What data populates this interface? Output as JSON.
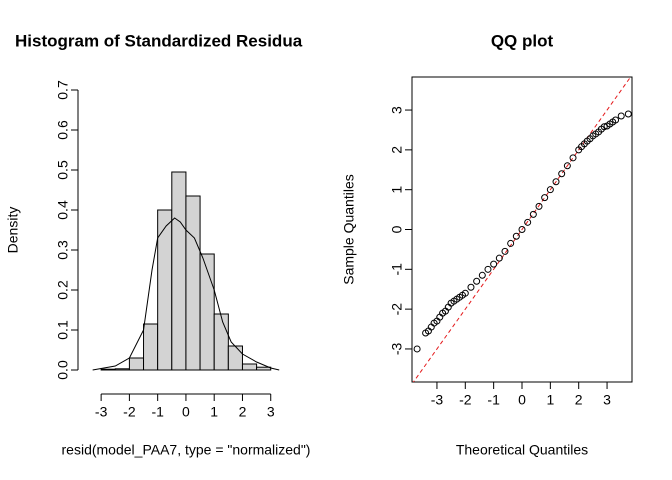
{
  "chart_data": [
    {
      "type": "histogram",
      "title": "Histogram of Standardized Residua",
      "xlabel": "resid(model_PAA7, type = \"normalized\")",
      "ylabel": "Density",
      "bins": [
        -3,
        -2.5,
        -2,
        -1.5,
        -1,
        -0.5,
        0,
        0.5,
        1,
        1.5,
        2,
        2.5,
        3
      ],
      "counts": [
        0.002,
        0.003,
        0.03,
        0.115,
        0.4,
        0.495,
        0.435,
        0.29,
        0.14,
        0.06,
        0.015,
        0.007
      ],
      "color": "#d3d3d3",
      "density": {
        "x": [
          -3.3,
          -2.5,
          -2,
          -1.5,
          -1.2,
          -1,
          -0.7,
          -0.4,
          -0.2,
          0,
          0.3,
          0.6,
          1,
          1.3,
          1.6,
          2,
          2.5,
          3,
          3.3
        ],
        "y": [
          0,
          0.01,
          0.03,
          0.1,
          0.25,
          0.33,
          0.36,
          0.38,
          0.37,
          0.35,
          0.33,
          0.28,
          0.2,
          0.12,
          0.07,
          0.04,
          0.02,
          0.005,
          0
        ]
      },
      "xlim": [
        -3.5,
        4
      ],
      "ylim": [
        0,
        0.7
      ],
      "xticks": [
        -3,
        -2,
        -1,
        0,
        1,
        2,
        3
      ],
      "yticks": [
        {
          "value": 0,
          "label": "0.0"
        },
        0.1,
        0.2,
        0.3,
        0.4,
        0.5,
        0.6,
        0.7
      ],
      "grid": false
    },
    {
      "type": "scatter",
      "title": "QQ plot",
      "xlabel": "Theoretical Quantiles",
      "ylabel": "Sample Quantiles",
      "x": [
        -3.7,
        -3.4,
        -3.3,
        -3.2,
        -3.1,
        -3.0,
        -2.9,
        -2.8,
        -2.7,
        -2.6,
        -2.5,
        -2.4,
        -2.3,
        -2.2,
        -2.1,
        -2.0,
        -1.8,
        -1.6,
        -1.4,
        -1.2,
        -1.0,
        -0.8,
        -0.6,
        -0.4,
        -0.2,
        0,
        0.2,
        0.4,
        0.6,
        0.8,
        1.0,
        1.2,
        1.4,
        1.6,
        1.8,
        2.0,
        2.1,
        2.2,
        2.3,
        2.4,
        2.5,
        2.6,
        2.7,
        2.8,
        2.9,
        3.0,
        3.1,
        3.2,
        3.3,
        3.5,
        3.75
      ],
      "y": [
        -3.0,
        -2.6,
        -2.55,
        -2.45,
        -2.35,
        -2.3,
        -2.2,
        -2.1,
        -2.05,
        -1.95,
        -1.85,
        -1.8,
        -1.75,
        -1.7,
        -1.65,
        -1.6,
        -1.45,
        -1.3,
        -1.15,
        -1.0,
        -0.87,
        -0.72,
        -0.55,
        -0.35,
        -0.17,
        0,
        0.18,
        0.38,
        0.58,
        0.8,
        1.0,
        1.2,
        1.4,
        1.6,
        1.8,
        2.0,
        2.08,
        2.15,
        2.22,
        2.28,
        2.35,
        2.4,
        2.45,
        2.52,
        2.58,
        2.6,
        2.65,
        2.7,
        2.75,
        2.85,
        2.9
      ],
      "color": "#000000",
      "reference_line": {
        "intercept": 0,
        "slope": 1,
        "color": "#e41a1c"
      },
      "xlim": [
        -3.88,
        3.88
      ],
      "ylim": [
        -3.83,
        3.83
      ],
      "xticks": [
        -3,
        -2,
        -1,
        0,
        1,
        2,
        3
      ],
      "yticks": [
        -3,
        -2,
        -1,
        0,
        1,
        2,
        3
      ],
      "grid": false,
      "box": true
    }
  ]
}
